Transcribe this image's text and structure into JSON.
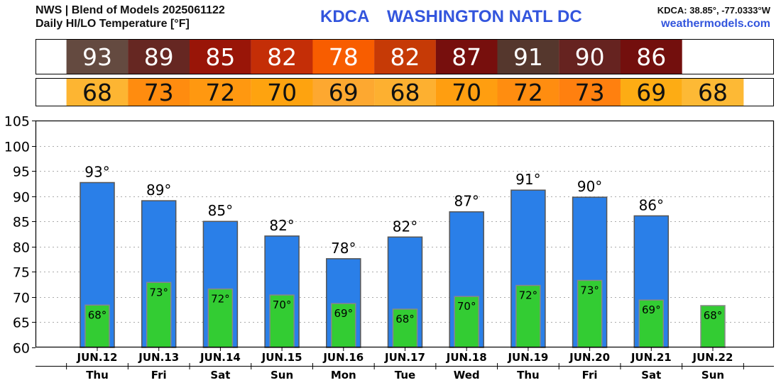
{
  "header": {
    "source_line": "NWS | Blend of Models 2025061122",
    "product_line": "Daily HI/LO Temperature [°F]",
    "station_id": "KDCA",
    "station_name": "WASHINGTON NATL DC",
    "coords": "KDCA: 38.85°, -77.0333°W",
    "website": "weathermodels.com"
  },
  "colors": {
    "hi_bar": "#2a7fe8",
    "lo_bar": "#33cc33",
    "title": "#3355dd"
  },
  "chart_data": {
    "type": "bar",
    "title": "Daily HI/LO Temperature [°F]",
    "ylim": [
      60,
      105
    ],
    "yticks": [
      60,
      65,
      70,
      75,
      80,
      85,
      90,
      95,
      100,
      105
    ],
    "grid": true,
    "categories": [
      "JUN.12",
      "JUN.13",
      "JUN.14",
      "JUN.15",
      "JUN.16",
      "JUN.17",
      "JUN.18",
      "JUN.19",
      "JUN.20",
      "JUN.21",
      "JUN.22"
    ],
    "weekdays": [
      "Thu",
      "Fri",
      "Sat",
      "Sun",
      "Mon",
      "Tue",
      "Wed",
      "Thu",
      "Fri",
      "Sat",
      "Sun"
    ],
    "series": [
      {
        "values": [
          93,
          89,
          85,
          82,
          78,
          82,
          87,
          91,
          90,
          86,
          null
        ],
        "bar_values": [
          92.7,
          89.1,
          85.0,
          82.1,
          77.6,
          81.9,
          86.9,
          91.2,
          89.8,
          86.1,
          null
        ],
        "labels": [
          "93°",
          "89°",
          "85°",
          "82°",
          "78°",
          "82°",
          "87°",
          "91°",
          "90°",
          "86°",
          ""
        ]
      },
      {
        "values": [
          68,
          73,
          72,
          70,
          69,
          68,
          70,
          72,
          73,
          69,
          68
        ],
        "bar_values": [
          68.4,
          72.9,
          71.6,
          70.4,
          68.7,
          67.6,
          70.1,
          72.3,
          73.3,
          69.4,
          68.3
        ],
        "labels": [
          "68°",
          "73°",
          "72°",
          "70°",
          "69°",
          "68°",
          "70°",
          "72°",
          "73°",
          "69°",
          "68°"
        ]
      }
    ],
    "hi_strip_colors": [
      "#644a40",
      "#662722",
      "#991508",
      "#c42e07",
      "#f85d00",
      "#c63a06",
      "#770f0d",
      "#55372d",
      "#662320",
      "#730f0d",
      null
    ],
    "lo_strip_colors": [
      "#fdb532",
      "#ff8c0f",
      "#ff9810",
      "#fea30f",
      "#fda830",
      "#fdb030",
      "#ff9e10",
      "#ff8d10",
      "#ff800f",
      "#fdac14",
      "#fdb935"
    ]
  }
}
